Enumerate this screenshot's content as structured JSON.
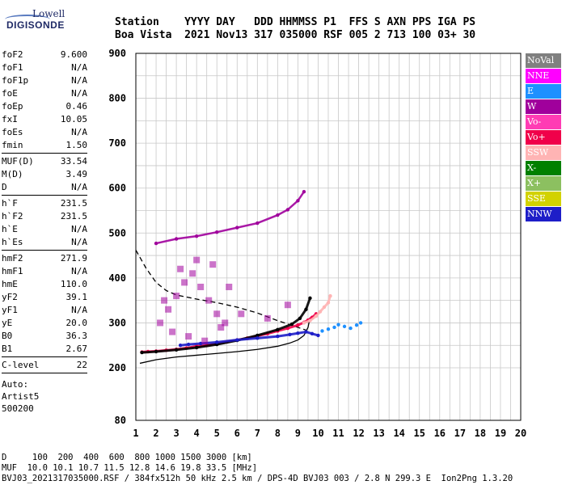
{
  "logo": {
    "line1": "Lowell",
    "line2": "DIGISONDE"
  },
  "header": {
    "line1": "Station    YYYY DAY   DDD HHMMSS P1  FFS S AXN PPS IGA PS",
    "line2": "Boa Vista  2021 Nov13 317 035000 RSF 005 2 713 100 03+ 30"
  },
  "params": {
    "group1": [
      {
        "name": "foF2",
        "value": "9.600"
      },
      {
        "name": "foF1",
        "value": "N/A"
      },
      {
        "name": "foF1p",
        "value": "N/A"
      },
      {
        "name": "foE",
        "value": "N/A"
      },
      {
        "name": "foEp",
        "value": "0.46"
      },
      {
        "name": "fxI",
        "value": "10.05"
      },
      {
        "name": "foEs",
        "value": "N/A"
      },
      {
        "name": "fmin",
        "value": "1.50"
      }
    ],
    "group2": [
      {
        "name": "MUF(D)",
        "value": "33.54"
      },
      {
        "name": "M(D)",
        "value": "3.49"
      },
      {
        "name": "D",
        "value": "N/A"
      }
    ],
    "group3": [
      {
        "name": "h`F",
        "value": "231.5"
      },
      {
        "name": "h`F2",
        "value": "231.5"
      },
      {
        "name": "h`E",
        "value": "N/A"
      },
      {
        "name": "h`Es",
        "value": "N/A"
      }
    ],
    "group4": [
      {
        "name": "hmF2",
        "value": "271.9"
      },
      {
        "name": "hmF1",
        "value": "N/A"
      },
      {
        "name": "hmE",
        "value": "110.0"
      },
      {
        "name": "yF2",
        "value": "39.1"
      },
      {
        "name": "yF1",
        "value": "N/A"
      },
      {
        "name": "yE",
        "value": "20.0"
      },
      {
        "name": "B0",
        "value": "36.3"
      },
      {
        "name": "B1",
        "value": "2.67"
      }
    ],
    "group5": [
      {
        "name": "C-level",
        "value": "22"
      }
    ],
    "auto": [
      "Auto:",
      "Artist5",
      "500200"
    ]
  },
  "legend": [
    {
      "label": "NoVal",
      "color": "#808080",
      "text": "#ffffff"
    },
    {
      "label": "NNE",
      "color": "#ff00ff",
      "text": "#ffffff"
    },
    {
      "label": "E",
      "color": "#1e90ff",
      "text": "#ffffff"
    },
    {
      "label": "W",
      "color": "#a0009c",
      "text": "#ffffff"
    },
    {
      "label": "Vo-",
      "color": "#ff3cb4",
      "text": "#ffffff"
    },
    {
      "label": "Vo+",
      "color": "#f0004a",
      "text": "#ffffff"
    },
    {
      "label": "SSW",
      "color": "#ffb4b4",
      "text": "#ffffff"
    },
    {
      "label": "X-",
      "color": "#008000",
      "text": "#ffffff"
    },
    {
      "label": "X+",
      "color": "#8cc060",
      "text": "#ffffff"
    },
    {
      "label": "SSE",
      "color": "#d2d200",
      "text": "#ffffff"
    },
    {
      "label": "NNW",
      "color": "#1e1ec8",
      "text": "#ffffff"
    }
  ],
  "footer": {
    "line1": "D     100  200  400  600  800 1000 1500 3000 [km]",
    "line2": "MUF  10.0 10.1 10.7 11.5 12.8 14.6 19.8 33.5 [MHz]",
    "line3": "BVJ03_2021317035000.RSF / 384fx512h 50 kHz 2.5 km / DPS-4D BVJ03 003 / 2.8 N 299.3 E  Ion2Png 1.3.20"
  },
  "chart_data": {
    "type": "scatter",
    "xlim": [
      1,
      20
    ],
    "ylim": [
      80,
      900
    ],
    "xticks": [
      1,
      2,
      3,
      4,
      5,
      6,
      7,
      8,
      9,
      10,
      11,
      12,
      13,
      14,
      15,
      16,
      17,
      18,
      19,
      20
    ],
    "yticks": [
      80,
      200,
      300,
      400,
      500,
      600,
      700,
      800,
      900
    ],
    "grid": true,
    "series": [
      {
        "id": "o_trace_vo_plus",
        "color": "#f0004a",
        "x": [
          1.3,
          1.6,
          2.0,
          2.5,
          3.0,
          3.5,
          4.0,
          4.5,
          5.0,
          5.5,
          6.0,
          6.5,
          7.0,
          7.5,
          8.0,
          8.5,
          9.0,
          9.3,
          9.5,
          9.7,
          9.9
        ],
        "y": [
          235,
          236,
          237,
          239,
          241,
          244,
          248,
          250,
          254,
          258,
          262,
          266,
          271,
          276,
          282,
          288,
          295,
          301,
          306,
          312,
          320
        ]
      },
      {
        "id": "o_trace_1f",
        "color": "#000000",
        "x": [
          1.3,
          2.0,
          3.0,
          4.0,
          5.0,
          6.0,
          7.0,
          8.0,
          8.7,
          9.1,
          9.4,
          9.6
        ],
        "y": [
          234,
          236,
          240,
          245,
          252,
          261,
          272,
          285,
          297,
          310,
          330,
          355
        ]
      },
      {
        "id": "x_trace_nnw",
        "color": "#1e1ec8",
        "x": [
          3.2,
          3.6,
          4.2,
          5.0,
          6.0,
          7.0,
          8.0,
          8.6,
          9.0,
          9.4,
          9.7,
          10.0
        ],
        "y": [
          250,
          252,
          254,
          257,
          262,
          266,
          270,
          274,
          277,
          280,
          276,
          272
        ]
      },
      {
        "id": "e_side_echo",
        "color": "#1e90ff",
        "x": [
          10.2,
          10.5,
          10.8,
          11.0,
          11.3,
          11.6,
          11.9,
          12.1
        ],
        "y": [
          282,
          286,
          290,
          296,
          292,
          288,
          295,
          300
        ]
      },
      {
        "id": "second_hop_w",
        "color": "#a0009c",
        "x": [
          2.0,
          3.0,
          4.0,
          5.0,
          6.0,
          7.0,
          8.0,
          8.5,
          9.0,
          9.3
        ],
        "y": [
          477,
          487,
          493,
          502,
          512,
          522,
          540,
          552,
          572,
          592
        ]
      },
      {
        "id": "ssw_cusp",
        "color": "#ffb4b4",
        "x": [
          9.3,
          9.6,
          9.9,
          10.1,
          10.3,
          10.5,
          10.6
        ],
        "y": [
          300,
          305,
          315,
          325,
          335,
          345,
          360
        ]
      },
      {
        "id": "spread_w",
        "color": "#a0009c",
        "x": [
          2.2,
          2.6,
          3.0,
          3.4,
          3.8,
          4.2,
          4.6,
          5.0,
          5.4,
          2.8,
          3.6,
          4.4,
          5.2,
          3.2,
          4.0,
          4.8,
          2.4,
          5.6,
          6.2,
          7.5,
          8.5
        ],
        "y": [
          300,
          330,
          360,
          390,
          410,
          380,
          350,
          320,
          300,
          280,
          270,
          260,
          290,
          420,
          440,
          430,
          350,
          380,
          320,
          310,
          340
        ]
      }
    ],
    "profile_lines": [
      {
        "id": "true_height_profile",
        "style": "solid",
        "color": "#000000",
        "x": [
          1.2,
          2.0,
          3.0,
          4.0,
          5.0,
          6.0,
          7.0,
          8.0,
          8.6,
          9.0,
          9.3,
          9.5,
          9.6
        ],
        "y": [
          210,
          218,
          224,
          228,
          232,
          236,
          241,
          248,
          255,
          262,
          272,
          290,
          312
        ]
      },
      {
        "id": "muf_curve",
        "style": "dashed",
        "color": "#000000",
        "x": [
          1.0,
          1.5,
          2.0,
          2.5,
          3.0,
          4.0,
          5.0,
          6.0,
          7.0,
          8.0,
          8.8,
          9.4
        ],
        "y": [
          462,
          422,
          390,
          372,
          362,
          353,
          345,
          335,
          322,
          305,
          293,
          284
        ]
      }
    ]
  }
}
